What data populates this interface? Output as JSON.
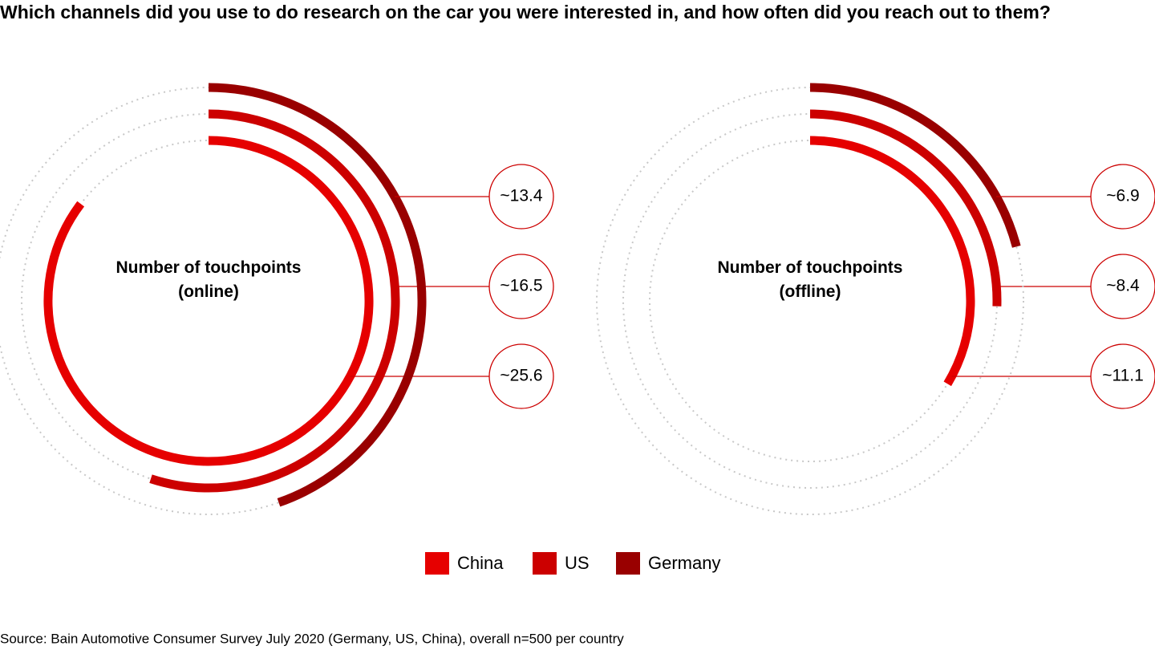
{
  "title": "Which channels did you use to do research on the car you were interested in, and how often did you reach out to them?",
  "source": "Source: Bain Automotive Consumer Survey July 2020 (Germany, US, China), overall n=500 per country",
  "chart_data": [
    {
      "type": "radial-bar",
      "title": "Number of touchpoints (online)",
      "ylim": [
        0,
        30
      ],
      "series": [
        {
          "name": "China",
          "color": "#e60000",
          "values": [
            25.6
          ],
          "value_labels": [
            "~25.6"
          ]
        },
        {
          "name": "US",
          "color": "#cc0000",
          "values": [
            16.5
          ],
          "value_labels": [
            "~16.5"
          ]
        },
        {
          "name": "Germany",
          "color": "#990000",
          "values": [
            13.4
          ],
          "value_labels": [
            "~13.4"
          ]
        }
      ]
    },
    {
      "type": "radial-bar",
      "title": "Number of touchpoints (offline)",
      "ylim": [
        0,
        33
      ],
      "series": [
        {
          "name": "China",
          "color": "#e60000",
          "values": [
            11.1
          ],
          "value_labels": [
            "~11.1"
          ]
        },
        {
          "name": "US",
          "color": "#cc0000",
          "values": [
            8.4
          ],
          "value_labels": [
            "~8.4"
          ]
        },
        {
          "name": "Germany",
          "color": "#990000",
          "values": [
            6.9
          ],
          "value_labels": [
            "~6.9"
          ]
        }
      ]
    }
  ]
}
